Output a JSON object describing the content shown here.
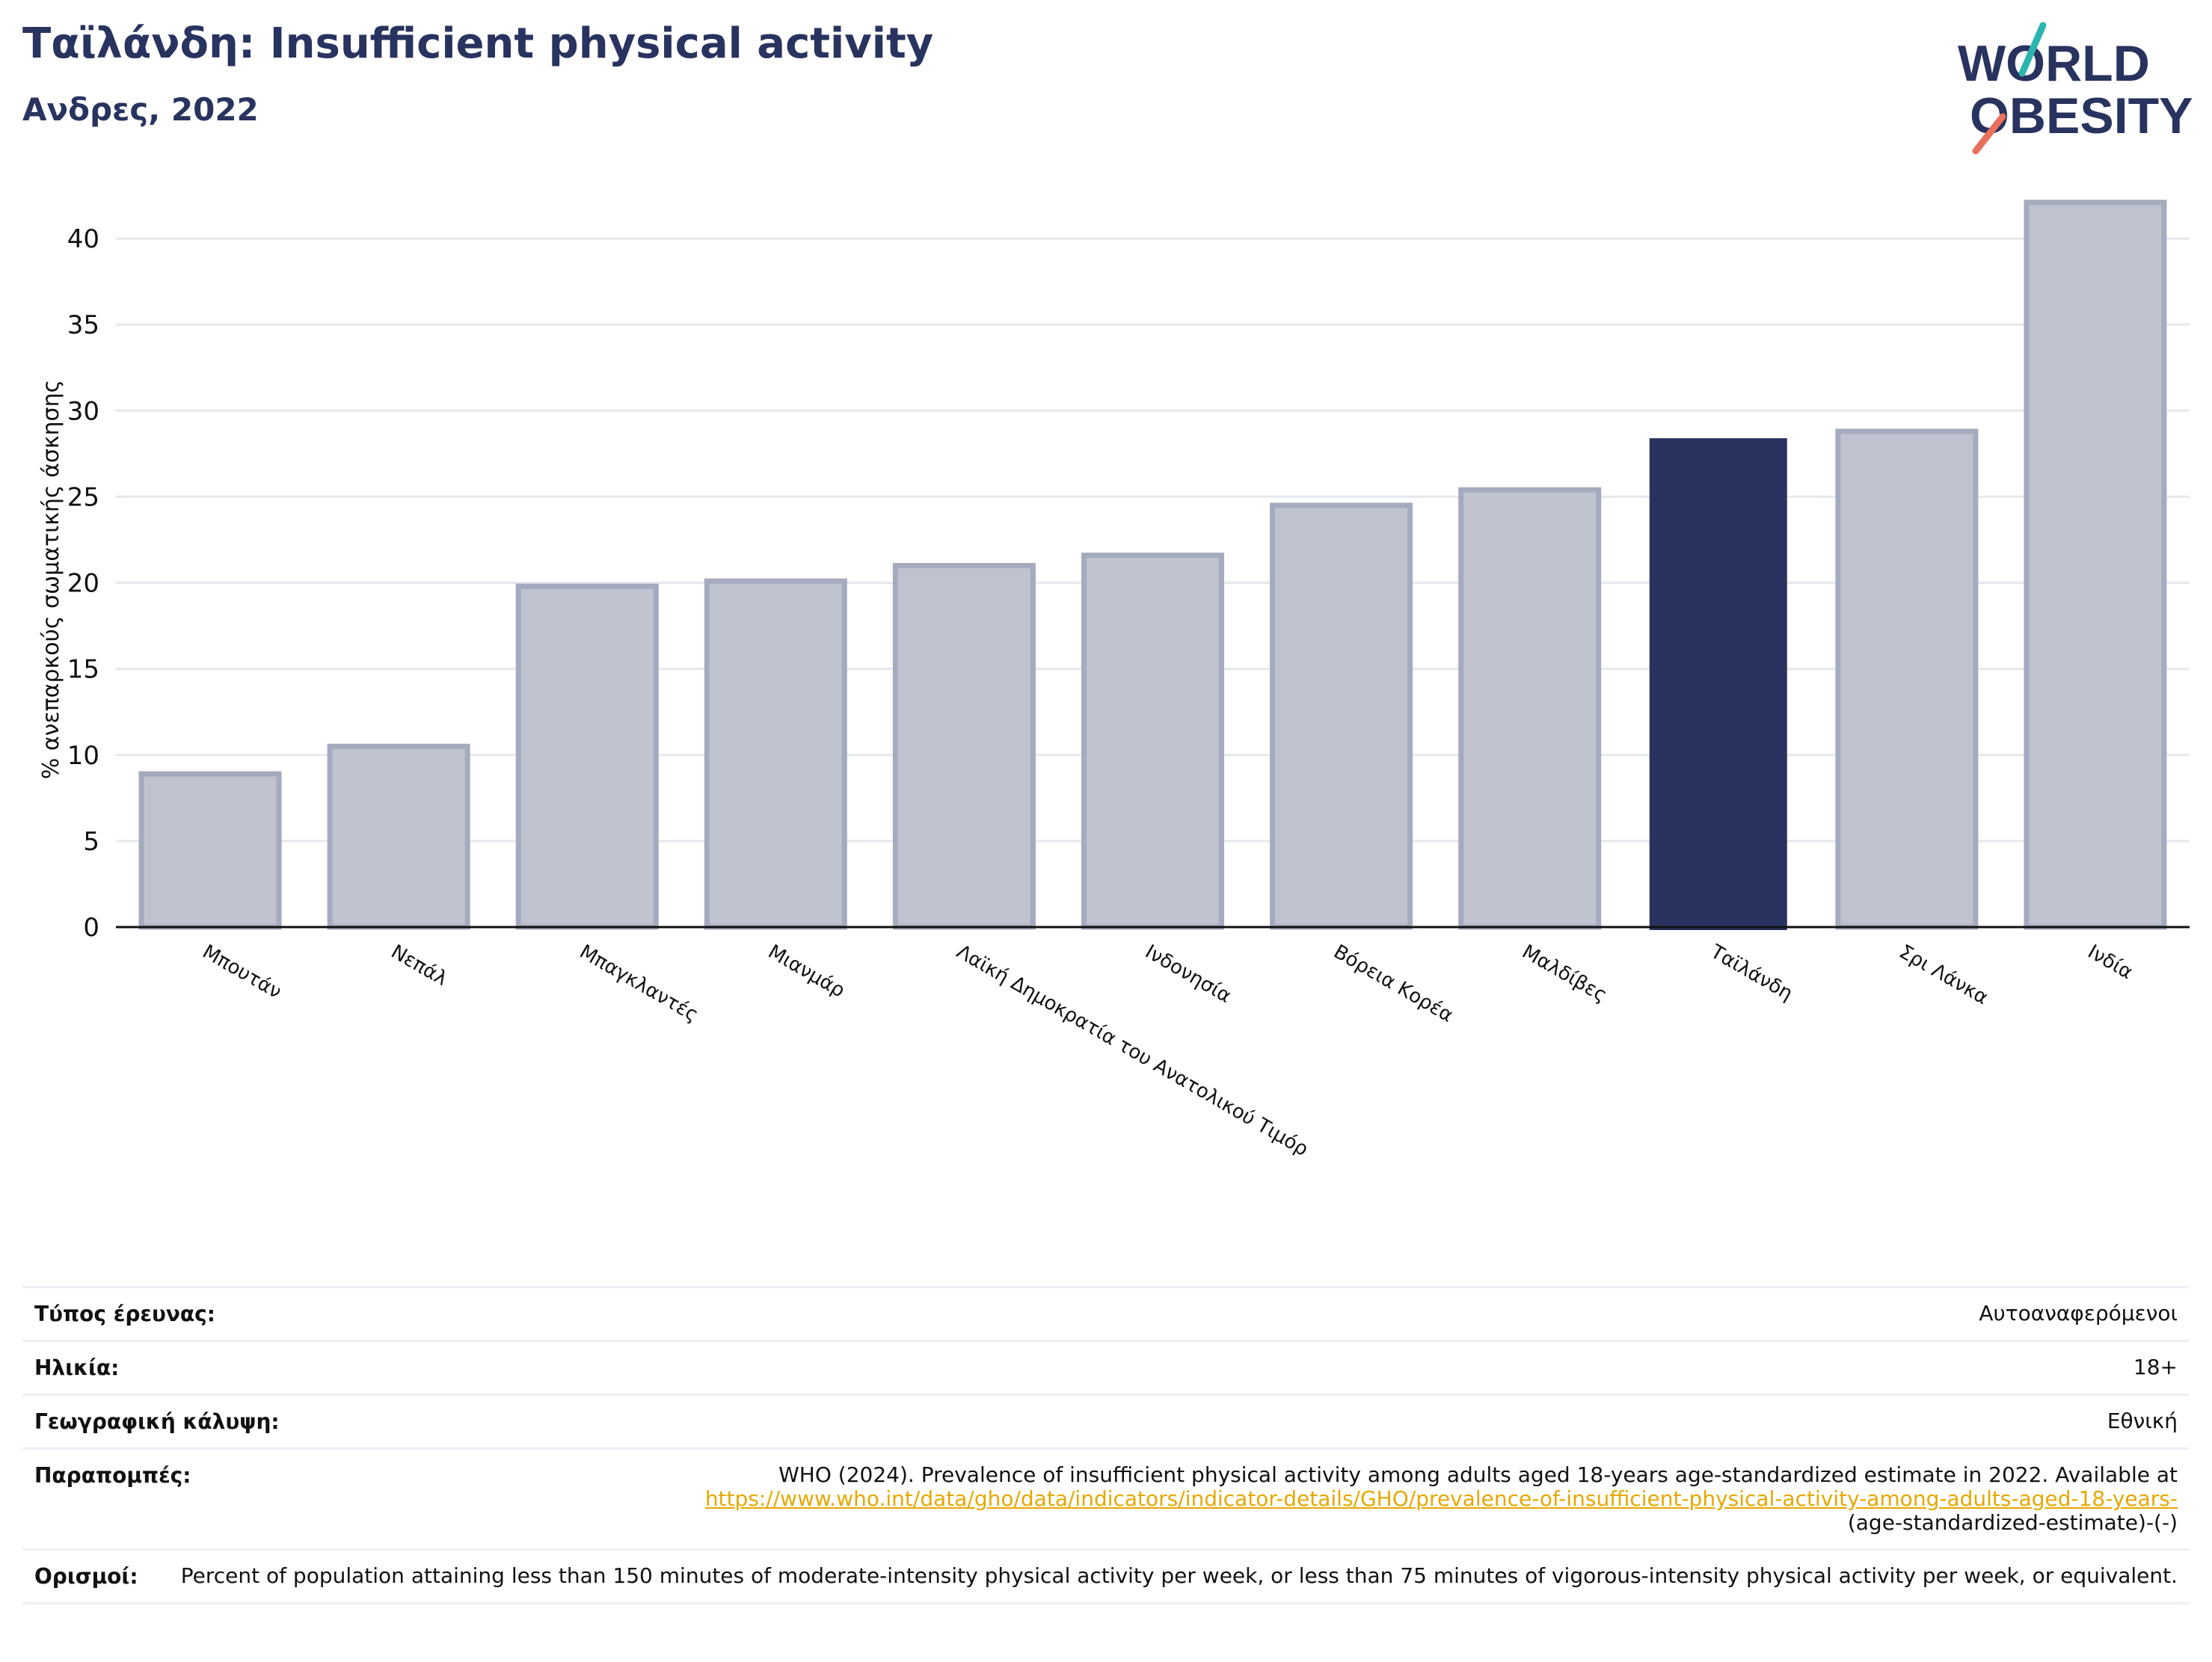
{
  "header": {
    "title": "Ταϊλάνδη: Insufficient physical activity",
    "subtitle": "Ανδρες, 2022"
  },
  "logo": {
    "line1": "WORLD",
    "line2": "OBESITY",
    "colors": {
      "text": "#28335f",
      "slash_top": "#2bb5b0",
      "slash_bottom": "#e8705c"
    }
  },
  "chart_data": {
    "type": "bar",
    "ylabel": "% ανεπαρκούς σωματικής άσκησης",
    "ylim": [
      0,
      43
    ],
    "yticks": [
      0,
      5,
      10,
      15,
      20,
      25,
      30,
      35,
      40
    ],
    "grid": true,
    "categories": [
      "Μπουτάν",
      "Νεπάλ",
      "Μπαγκλαντές",
      "Μιανμάρ",
      "Λαϊκή Δημοκρατία του Ανατολικού Τιμόρ",
      "Ινδονησία",
      "Βόρεια Κορέα",
      "Μαλδίβες",
      "Ταϊλάνδη",
      "Σρι Λάνκα",
      "Ινδία"
    ],
    "values": [
      8.9,
      10.5,
      19.8,
      20.1,
      21.0,
      21.6,
      24.5,
      25.4,
      28.4,
      28.8,
      42.1
    ],
    "highlight": "Ταϊλάνδη",
    "colors": {
      "bar": "#bfc3d0",
      "bar_border": "#a5abbe",
      "highlight": "#28335f",
      "grid": "#e6e8ee",
      "axis": "#111111"
    }
  },
  "meta": {
    "rows": [
      {
        "label": "Τύπος έρευνας:",
        "value": "Αυτοαναφερόμενοι"
      },
      {
        "label": "Ηλικία:",
        "value": "18+"
      },
      {
        "label": "Γεωγραφική κάλυψη:",
        "value": "Εθνική"
      },
      {
        "label": "Παραπομπές:",
        "value": "WHO (2024). Prevalence of insufficient physical activity among adults aged 18-years age-standardized estimate in 2022. Available at",
        "link": "https://www.who.int/data/gho/data/indicators/indicator-details/GHO/prevalence-of-insufficient-physical-activity-among-adults-aged-18-years-",
        "value_after": "(age-standardized-estimate)-(-)"
      },
      {
        "label": "Ορισμοί:",
        "value": "Percent of population attaining less than 150 minutes of moderate-intensity physical activity per week, or less than 75 minutes of vigorous-intensity physical activity per week, or equivalent."
      }
    ]
  }
}
